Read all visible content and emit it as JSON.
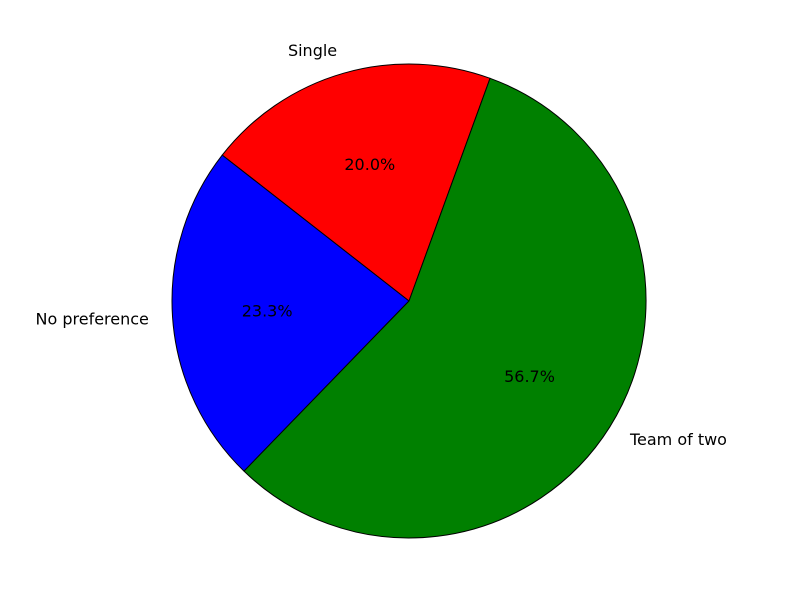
{
  "chart_data": {
    "type": "pie",
    "title": "",
    "slices": [
      {
        "label": "Single",
        "value": 20.0,
        "pct_label": "20.0%",
        "color": "#ff0000"
      },
      {
        "label": "No preference",
        "value": 23.3,
        "pct_label": "23.3%",
        "color": "#0000ff"
      },
      {
        "label": "Team of two",
        "value": 56.7,
        "pct_label": "56.7%",
        "color": "#008000"
      }
    ],
    "start_angle_deg": 70,
    "direction": "counterclockwise",
    "legend": "none",
    "grid": false
  }
}
